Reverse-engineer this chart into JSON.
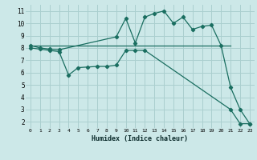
{
  "xlabel": "Humidex (Indice chaleur)",
  "bg_color": "#cce8e8",
  "grid_color": "#aacfcf",
  "line_color": "#1a6e60",
  "line1_x": [
    0,
    1,
    2,
    3,
    9,
    10,
    11,
    12,
    13,
    14,
    15,
    16,
    17,
    18,
    19,
    20,
    21,
    22,
    23
  ],
  "line1_y": [
    8.2,
    8.0,
    7.9,
    7.85,
    8.9,
    10.4,
    8.4,
    10.5,
    10.8,
    11.0,
    10.0,
    10.5,
    9.5,
    9.75,
    9.85,
    8.2,
    4.8,
    3.0,
    1.85
  ],
  "line2_x": [
    0,
    21
  ],
  "line2_y": [
    8.2,
    8.2
  ],
  "line3_x": [
    0,
    1,
    2,
    3,
    4,
    5,
    6,
    7,
    8,
    9,
    10,
    11,
    12,
    21,
    22,
    23
  ],
  "line3_y": [
    8.0,
    7.9,
    7.8,
    7.7,
    5.8,
    6.4,
    6.45,
    6.5,
    6.5,
    6.6,
    7.8,
    7.8,
    7.8,
    3.0,
    1.85,
    1.85
  ],
  "xlim": [
    -0.5,
    23.5
  ],
  "ylim": [
    1.5,
    11.5
  ],
  "xticks": [
    0,
    1,
    2,
    3,
    4,
    5,
    6,
    7,
    8,
    9,
    10,
    11,
    12,
    13,
    14,
    15,
    16,
    17,
    18,
    19,
    20,
    21,
    22,
    23
  ],
  "yticks": [
    2,
    3,
    4,
    5,
    6,
    7,
    8,
    9,
    10,
    11
  ],
  "xlabel_fontsize": 6,
  "tick_fontsize_x": 4.5,
  "tick_fontsize_y": 5.5
}
